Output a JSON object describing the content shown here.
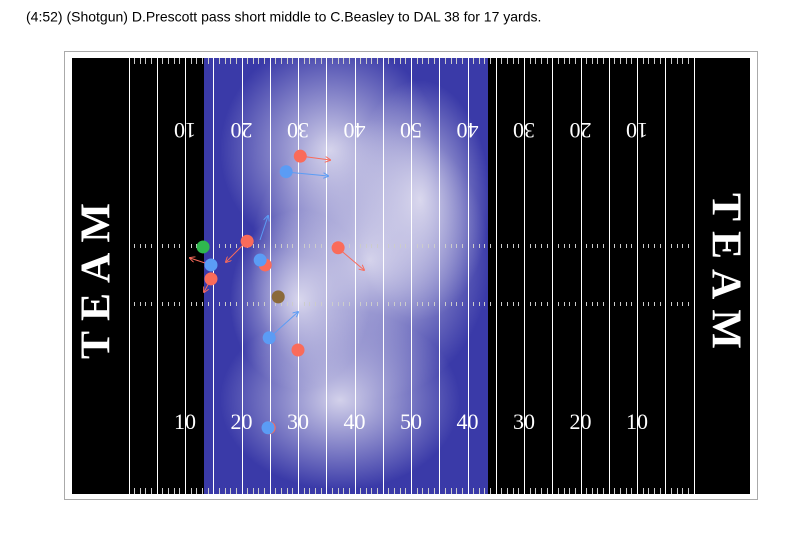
{
  "chart_data": {
    "type": "scatter",
    "title": "(4:52) (Shotgun) D.Prescott pass short middle to C.Beasley to DAL 38 for 17 yards.",
    "xlim": [
      0,
      120
    ],
    "ylim": [
      0,
      53.3
    ],
    "yard_labels": [
      "10",
      "20",
      "30",
      "40",
      "50",
      "40",
      "30",
      "20",
      "10"
    ],
    "yard_label_x": [
      20,
      30,
      40,
      50,
      60,
      70,
      80,
      90,
      100
    ],
    "end_zone_label": "TEAM",
    "series": [
      {
        "color": "#fa6b5a",
        "x": [
          40.4,
          31.0,
          34.2,
          24.6,
          47.1,
          40.0,
          34.9
        ],
        "values": [
          41.3,
          30.9,
          28.0,
          26.3,
          30.1,
          17.6,
          8.1
        ]
      },
      {
        "color": "#5b9cf5",
        "x": [
          37.9,
          33.3,
          24.6,
          34.9,
          34.7
        ],
        "values": [
          39.4,
          28.6,
          28.0,
          19.1,
          8.1
        ]
      },
      {
        "color": "#2fb84e",
        "x": [
          23.2
        ],
        "values": [
          30.2
        ]
      },
      {
        "color": "#8b6a3a",
        "x": [
          36.5
        ],
        "values": [
          24.1
        ]
      }
    ]
  }
}
